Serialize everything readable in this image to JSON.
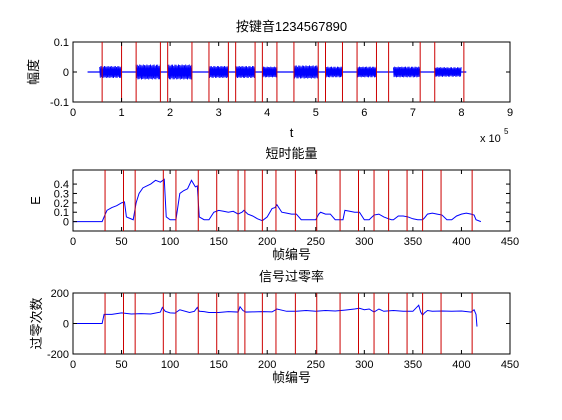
{
  "chart_data": [
    {
      "type": "line",
      "title": "按键音1234567890",
      "xlabel": "t",
      "ylabel": "幅度",
      "xlim": [
        0,
        900000
      ],
      "ylim": [
        -0.1,
        0.1
      ],
      "xticks": [
        0,
        100000,
        200000,
        300000,
        400000,
        500000,
        600000,
        700000,
        800000,
        900000
      ],
      "xtick_labels": [
        "0",
        "1",
        "2",
        "3",
        "4",
        "5",
        "6",
        "7",
        "8",
        "9"
      ],
      "yticks": [
        -0.1,
        0,
        0.1
      ],
      "ytick_labels": [
        "-0.1",
        "0",
        "0.1"
      ],
      "x_exponent_base": "x 10",
      "x_exponent_power": "5",
      "signal_end": 810000,
      "bursts": [
        [
          55000,
          100000
        ],
        [
          130000,
          180000
        ],
        [
          195000,
          245000
        ],
        [
          280000,
          320000
        ],
        [
          335000,
          375000
        ],
        [
          390000,
          420000
        ],
        [
          455000,
          505000
        ],
        [
          520000,
          555000
        ],
        [
          585000,
          625000
        ],
        [
          660000,
          715000
        ],
        [
          745000,
          800000
        ]
      ],
      "burst_amplitude": [
        0.02,
        0.025,
        0.025,
        0.02,
        0.02,
        0.018,
        0.022,
        0.018,
        0.018,
        0.018,
        0.016
      ],
      "markers": [
        60000,
        100000,
        130000,
        180000,
        195000,
        245000,
        280000,
        320000,
        335000,
        375000,
        390000,
        420000,
        455000,
        505000,
        520000,
        555000,
        585000,
        625000,
        650000,
        715000,
        745000,
        805000
      ],
      "line_color": "#0000ff",
      "marker_color": "#cc0000"
    },
    {
      "type": "line",
      "title": "短时能量",
      "xlabel": "帧编号",
      "ylabel": "E",
      "xlim": [
        0,
        450
      ],
      "ylim": [
        -0.1,
        0.55
      ],
      "xticks": [
        0,
        50,
        100,
        150,
        200,
        250,
        300,
        350,
        400,
        450
      ],
      "xtick_labels": [
        "0",
        "50",
        "100",
        "150",
        "200",
        "250",
        "300",
        "350",
        "400",
        "450"
      ],
      "yticks": [
        0,
        0.1,
        0.2,
        0.3,
        0.4
      ],
      "ytick_labels": [
        "0",
        "0.1",
        "0.2",
        "0.3",
        "0.4"
      ],
      "x": [
        0,
        30,
        32,
        35,
        40,
        45,
        50,
        53,
        55,
        62,
        65,
        68,
        72,
        76,
        80,
        85,
        90,
        94,
        96,
        100,
        103,
        106,
        110,
        114,
        118,
        122,
        126,
        128,
        130,
        135,
        140,
        145,
        150,
        155,
        160,
        165,
        170,
        174,
        176,
        180,
        185,
        190,
        195,
        200,
        205,
        208,
        210,
        215,
        220,
        225,
        230,
        235,
        240,
        245,
        250,
        253,
        255,
        260,
        265,
        270,
        275,
        278,
        280,
        285,
        290,
        295,
        300,
        305,
        310,
        315,
        320,
        325,
        328,
        330,
        335,
        340,
        345,
        350,
        355,
        360,
        362,
        365,
        370,
        375,
        380,
        385,
        390,
        395,
        400,
        405,
        410,
        413,
        415,
        420
      ],
      "y": [
        0,
        0,
        0.05,
        0.12,
        0.15,
        0.17,
        0.2,
        0.21,
        0.05,
        0.02,
        0.2,
        0.3,
        0.36,
        0.38,
        0.4,
        0.44,
        0.42,
        0.45,
        0.05,
        0.02,
        0.02,
        0.02,
        0.3,
        0.33,
        0.35,
        0.44,
        0.37,
        0.38,
        0.05,
        0.02,
        0.02,
        0.1,
        0.12,
        0.11,
        0.1,
        0.11,
        0.08,
        0.1,
        0.12,
        0.08,
        0.06,
        0.03,
        0.01,
        0.05,
        0.14,
        0.15,
        0.18,
        0.1,
        0.09,
        0.08,
        0.08,
        0.02,
        0.02,
        0.02,
        0.02,
        0.08,
        0.1,
        0.08,
        0.08,
        0.02,
        0.02,
        0.02,
        0.12,
        0.11,
        0.1,
        0.1,
        0.02,
        0.02,
        0.07,
        0.08,
        0.05,
        0.03,
        0.02,
        0.02,
        0.06,
        0.06,
        0.05,
        0.03,
        0.02,
        0.02,
        0.04,
        0.08,
        0.09,
        0.08,
        0.07,
        0.02,
        0.02,
        0.06,
        0.08,
        0.09,
        0.08,
        0.07,
        0.02,
        0.0
      ],
      "markers": [
        33,
        52,
        64,
        93,
        106,
        129,
        148,
        170,
        177,
        195,
        209,
        229,
        251,
        275,
        294,
        310,
        325,
        344,
        360,
        379,
        411
      ],
      "line_color": "#0000ff",
      "marker_color": "#cc0000"
    },
    {
      "type": "line",
      "title": "信号过零率",
      "xlabel": "帧编号",
      "ylabel": "过零次数",
      "xlim": [
        0,
        450
      ],
      "ylim": [
        -200,
        200
      ],
      "xticks": [
        0,
        50,
        100,
        150,
        200,
        250,
        300,
        350,
        400,
        450
      ],
      "xtick_labels": [
        "0",
        "50",
        "100",
        "150",
        "200",
        "250",
        "300",
        "350",
        "400",
        "450"
      ],
      "yticks": [
        -200,
        0,
        200
      ],
      "ytick_labels": [
        "-200",
        "0",
        "200"
      ],
      "x": [
        0,
        30,
        32,
        40,
        50,
        60,
        70,
        80,
        90,
        92,
        95,
        100,
        105,
        110,
        120,
        125,
        128,
        130,
        135,
        140,
        150,
        160,
        170,
        172,
        175,
        178,
        185,
        195,
        205,
        210,
        220,
        230,
        240,
        250,
        260,
        270,
        280,
        290,
        295,
        300,
        305,
        310,
        315,
        320,
        330,
        340,
        350,
        356,
        358,
        360,
        362,
        365,
        370,
        380,
        390,
        400,
        410,
        413,
        415,
        416
      ],
      "y": [
        0,
        0,
        60,
        60,
        70,
        62,
        65,
        62,
        75,
        105,
        80,
        70,
        68,
        90,
        72,
        80,
        105,
        80,
        78,
        72,
        72,
        78,
        75,
        110,
        85,
        75,
        76,
        78,
        76,
        95,
        80,
        80,
        85,
        80,
        85,
        82,
        88,
        95,
        100,
        90,
        95,
        75,
        95,
        80,
        85,
        80,
        80,
        120,
        75,
        55,
        70,
        85,
        80,
        82,
        80,
        82,
        75,
        90,
        60,
        -20
      ],
      "markers": [
        33,
        52,
        64,
        93,
        106,
        129,
        148,
        170,
        177,
        195,
        209,
        229,
        251,
        275,
        294,
        310,
        325,
        344,
        360,
        379,
        411
      ],
      "line_color": "#0000ff",
      "marker_color": "#cc0000"
    }
  ]
}
